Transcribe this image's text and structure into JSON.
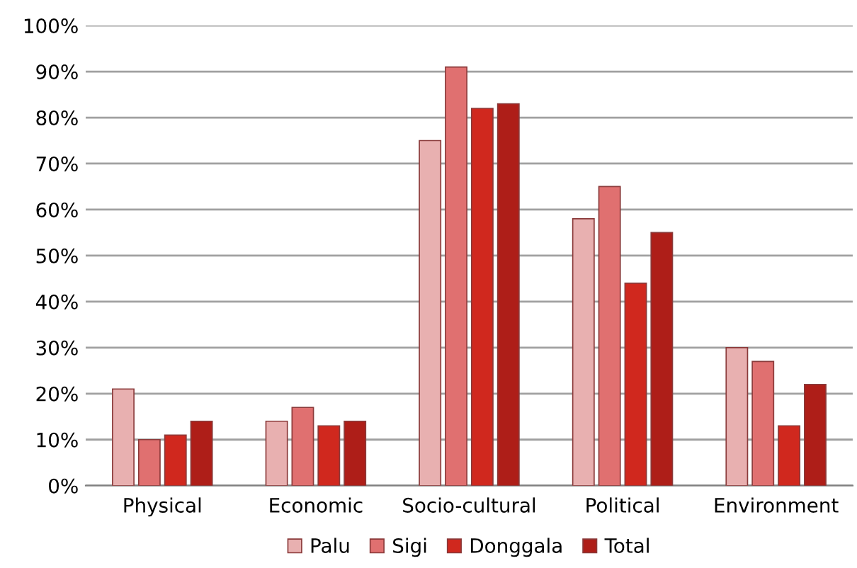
{
  "chart_data": {
    "type": "bar",
    "categories": [
      "Physical",
      "Economic",
      "Socio-cultural",
      "Political",
      "Environment"
    ],
    "series": [
      {
        "name": "Palu",
        "color": "#e8b0b0",
        "values": [
          21,
          14,
          75,
          58,
          30
        ]
      },
      {
        "name": "Sigi",
        "color": "#e07070",
        "values": [
          10,
          17,
          91,
          65,
          27
        ]
      },
      {
        "name": "Donggala",
        "color": "#d0281e",
        "values": [
          11,
          13,
          82,
          44,
          13
        ]
      },
      {
        "name": "Total",
        "color": "#ae1e18",
        "values": [
          14,
          14,
          83,
          55,
          22
        ]
      }
    ],
    "ylim": [
      0,
      100
    ],
    "yticks": [
      {
        "value": 0,
        "label": "0%"
      },
      {
        "value": 10,
        "label": "10%"
      },
      {
        "value": 20,
        "label": "20%"
      },
      {
        "value": 30,
        "label": "30%"
      },
      {
        "value": 40,
        "label": "40%"
      },
      {
        "value": 50,
        "label": "50%"
      },
      {
        "value": 60,
        "label": "60%"
      },
      {
        "value": 70,
        "label": "70%"
      },
      {
        "value": 80,
        "label": "80%"
      },
      {
        "value": 90,
        "label": "90%"
      },
      {
        "value": 100,
        "label": "100%"
      }
    ],
    "grid": "y",
    "legend": "bottom"
  }
}
